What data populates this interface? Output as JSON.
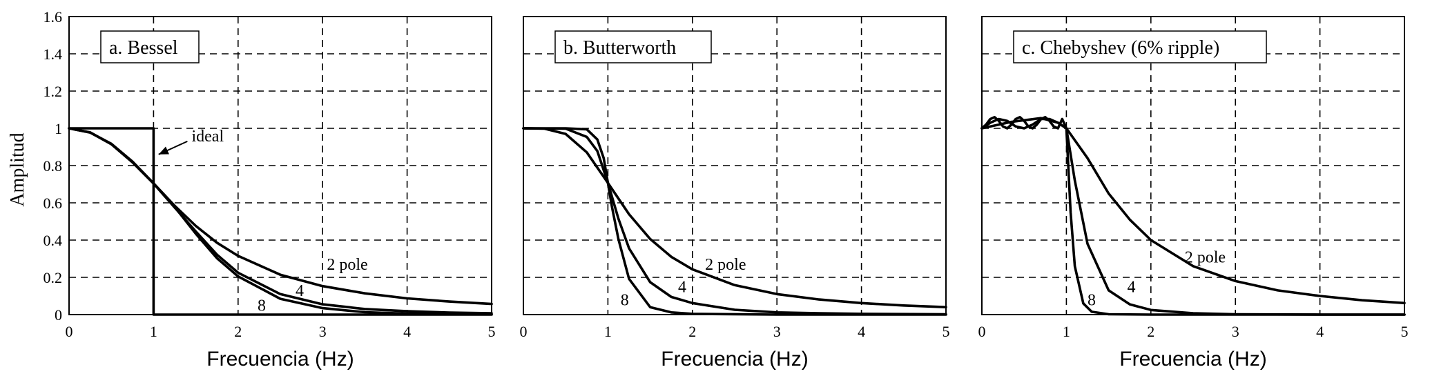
{
  "figure": {
    "ylabel": "Amplitud"
  },
  "chart_data": [
    {
      "type": "line",
      "title": "a.  Bessel",
      "xlabel": "Frecuencia (Hz)",
      "ylabel": "Amplitud",
      "xlim": [
        0,
        5
      ],
      "ylim": [
        0,
        1.6
      ],
      "x_ticks": [
        "0",
        "1",
        "2",
        "3",
        "4",
        "5"
      ],
      "y_ticks": [
        "0",
        "0.2",
        "0.4",
        "0.6",
        "0.8",
        "1",
        "1.2",
        "1.4",
        "1.6"
      ],
      "grid": true,
      "series": [
        {
          "name": "ideal",
          "x": [
            0,
            1,
            1,
            5
          ],
          "y": [
            1,
            1,
            0,
            0
          ]
        },
        {
          "name": "2 pole",
          "x": [
            0,
            0.25,
            0.5,
            0.75,
            1,
            1.25,
            1.5,
            1.75,
            2,
            2.5,
            3,
            3.5,
            4,
            4.5,
            5
          ],
          "y": [
            1,
            0.977,
            0.917,
            0.822,
            0.705,
            0.584,
            0.476,
            0.386,
            0.315,
            0.214,
            0.153,
            0.114,
            0.087,
            0.07,
            0.057
          ]
        },
        {
          "name": "4",
          "x": [
            0,
            0.25,
            0.5,
            0.75,
            1,
            1.25,
            1.5,
            1.75,
            2,
            2.5,
            3,
            3.5,
            4,
            4.5,
            5
          ],
          "y": [
            1,
            0.978,
            0.915,
            0.818,
            0.704,
            0.575,
            0.446,
            0.322,
            0.225,
            0.11,
            0.055,
            0.03,
            0.018,
            0.011,
            0.007
          ]
        },
        {
          "name": "8",
          "x": [
            0,
            0.25,
            0.5,
            0.75,
            1,
            1.25,
            1.5,
            1.75,
            2,
            2.5,
            3,
            3.5,
            4,
            4.5,
            5
          ],
          "y": [
            1,
            0.978,
            0.915,
            0.818,
            0.704,
            0.578,
            0.434,
            0.303,
            0.205,
            0.085,
            0.035,
            0.013,
            0.005,
            0.002,
            0.001
          ]
        }
      ],
      "annotations": [
        {
          "text": "ideal",
          "x": 1.45,
          "y": 0.93
        },
        {
          "text": "2 pole",
          "x": 3.05,
          "y": 0.24
        },
        {
          "text": "4",
          "x": 2.68,
          "y": 0.1
        },
        {
          "text": "8",
          "x": 2.23,
          "y": 0.02
        }
      ]
    },
    {
      "type": "line",
      "title": "b.  Butterworth",
      "xlabel": "Frecuencia (Hz)",
      "xlim": [
        0,
        5
      ],
      "ylim": [
        0,
        1.6
      ],
      "x_ticks": [
        "0",
        "1",
        "2",
        "3",
        "4",
        "5"
      ],
      "grid": true,
      "series": [
        {
          "name": "2 pole",
          "x": [
            0,
            0.25,
            0.5,
            0.75,
            1,
            1.25,
            1.5,
            1.75,
            2,
            2.5,
            3,
            3.5,
            4,
            4.5,
            5
          ],
          "y": [
            1,
            0.998,
            0.97,
            0.871,
            0.707,
            0.539,
            0.406,
            0.31,
            0.243,
            0.158,
            0.11,
            0.081,
            0.062,
            0.049,
            0.04
          ]
        },
        {
          "name": "4",
          "x": [
            0,
            0.5,
            0.75,
            0.875,
            1,
            1.125,
            1.25,
            1.5,
            1.75,
            2,
            2.5,
            3,
            3.5,
            4,
            5
          ],
          "y": [
            1,
            0.998,
            0.954,
            0.878,
            0.707,
            0.514,
            0.356,
            0.174,
            0.095,
            0.062,
            0.026,
            0.012,
            0.007,
            0.004,
            0.002
          ]
        },
        {
          "name": "8",
          "x": [
            0,
            0.5,
            0.75,
            0.875,
            0.95,
            1,
            1.05,
            1.125,
            1.25,
            1.5,
            1.75,
            2,
            3,
            4,
            5
          ],
          "y": [
            1,
            1,
            0.995,
            0.94,
            0.84,
            0.707,
            0.574,
            0.404,
            0.192,
            0.04,
            0.012,
            0.004,
            0,
            0,
            0
          ]
        }
      ],
      "annotations": [
        {
          "text": "2 pole",
          "x": 2.15,
          "y": 0.24
        },
        {
          "text": "4",
          "x": 1.83,
          "y": 0.12
        },
        {
          "text": "8",
          "x": 1.15,
          "y": 0.05
        }
      ]
    },
    {
      "type": "line",
      "title": "c.  Chebyshev (6% ripple)",
      "xlabel": "Frecuencia (Hz)",
      "xlim": [
        0,
        5
      ],
      "ylim": [
        0,
        1.6
      ],
      "x_ticks": [
        "0",
        "1",
        "2",
        "3",
        "4",
        "5"
      ],
      "grid": true,
      "series": [
        {
          "name": "2 pole",
          "x": [
            0,
            0.35,
            0.7,
            0.9,
            1,
            1.25,
            1.5,
            1.75,
            2,
            2.5,
            3,
            3.5,
            4,
            4.5,
            5
          ],
          "y": [
            1,
            1.035,
            1.055,
            1.03,
            1,
            0.84,
            0.65,
            0.51,
            0.4,
            0.26,
            0.18,
            0.13,
            0.1,
            0.077,
            0.062
          ]
        },
        {
          "name": "4",
          "x": [
            0,
            0.1,
            0.2,
            0.3,
            0.4,
            0.5,
            0.6,
            0.7,
            0.8,
            0.9,
            1,
            1.1,
            1.25,
            1.5,
            1.75,
            2,
            2.5,
            3,
            4,
            5
          ],
          "y": [
            1,
            1.03,
            1.05,
            1.04,
            1.01,
            1.0,
            1.02,
            1.05,
            1.05,
            1.03,
            1.0,
            0.72,
            0.38,
            0.13,
            0.055,
            0.025,
            0.007,
            0.002,
            0,
            0
          ]
        },
        {
          "name": "8",
          "x": [
            0,
            0.05,
            0.1,
            0.15,
            0.2,
            0.25,
            0.3,
            0.35,
            0.4,
            0.45,
            0.5,
            0.55,
            0.6,
            0.65,
            0.7,
            0.75,
            0.8,
            0.85,
            0.9,
            0.95,
            1,
            1.05,
            1.1,
            1.2,
            1.3,
            1.5,
            2,
            3,
            5
          ],
          "y": [
            1,
            1.02,
            1.05,
            1.06,
            1.04,
            1.01,
            1,
            1.02,
            1.05,
            1.06,
            1.04,
            1.01,
            1,
            1.02,
            1.05,
            1.06,
            1.04,
            1.01,
            1.0,
            1.05,
            1.0,
            0.55,
            0.26,
            0.06,
            0.015,
            0.002,
            0,
            0,
            0
          ]
        }
      ],
      "annotations": [
        {
          "text": "2 pole",
          "x": 2.4,
          "y": 0.28
        },
        {
          "text": "4",
          "x": 1.72,
          "y": 0.12
        },
        {
          "text": "8",
          "x": 1.25,
          "y": 0.05
        }
      ]
    }
  ]
}
